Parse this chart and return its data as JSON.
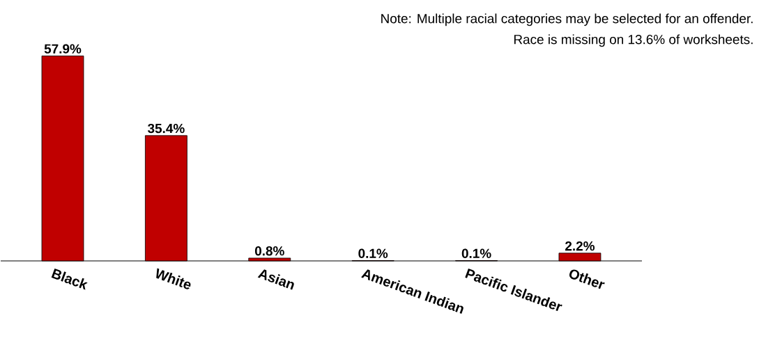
{
  "chart_data": {
    "type": "bar",
    "categories": [
      "Black",
      "White",
      "Asian",
      "American Indian",
      "Pacific Islander",
      "Other"
    ],
    "values": [
      57.9,
      35.4,
      0.8,
      0.1,
      0.1,
      2.2
    ],
    "value_labels": [
      "57.9%",
      "35.4%",
      "0.8%",
      "0.1%",
      "0.1%",
      "2.2%"
    ],
    "color": "#c00000",
    "annotations": [
      "Note: Multiple racial categories may be selected for an offender.",
      "Race is missing on 13.6% of worksheets."
    ]
  }
}
